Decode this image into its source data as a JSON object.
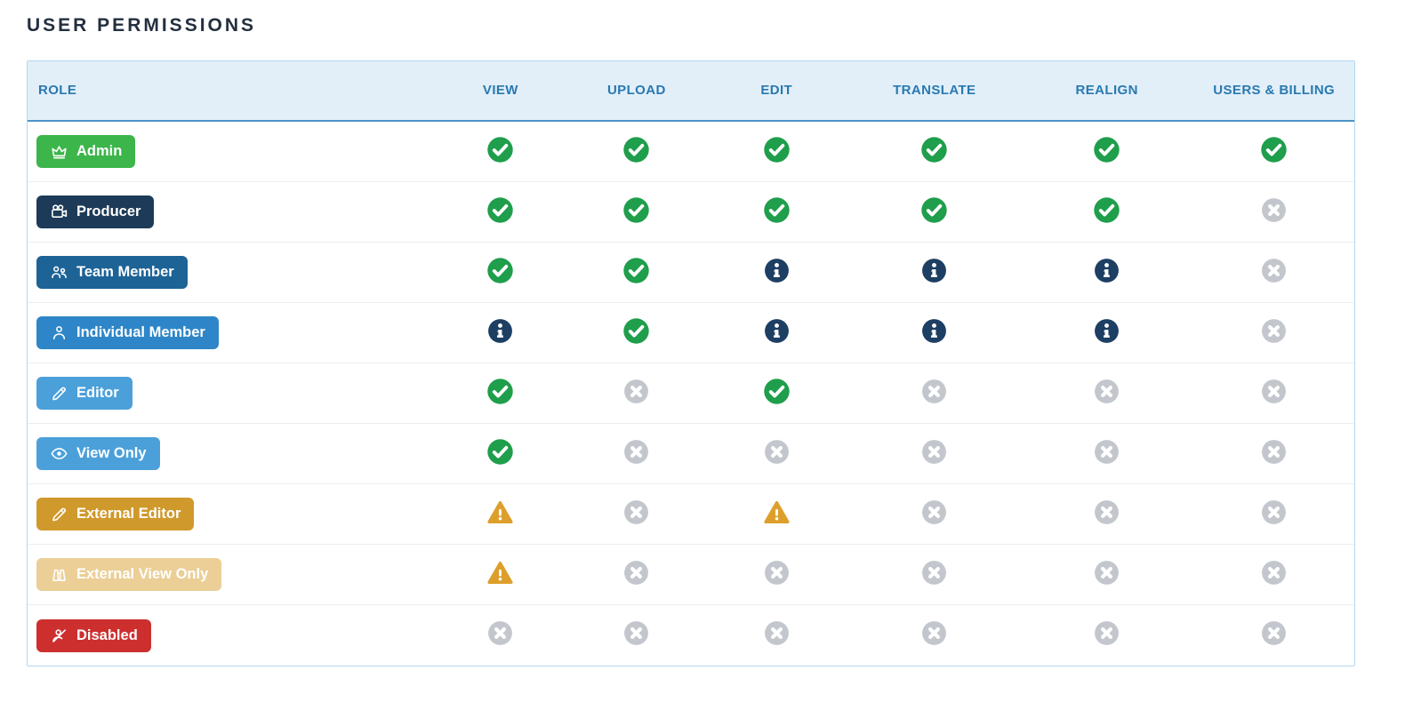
{
  "page": {
    "title": "USER PERMISSIONS"
  },
  "table": {
    "columns": [
      {
        "key": "role",
        "label": "ROLE"
      },
      {
        "key": "view",
        "label": "VIEW"
      },
      {
        "key": "upload",
        "label": "UPLOAD"
      },
      {
        "key": "edit",
        "label": "EDIT"
      },
      {
        "key": "translate",
        "label": "TRANSLATE"
      },
      {
        "key": "realign",
        "label": "REALIGN"
      },
      {
        "key": "users_billing",
        "label": "USERS & BILLING"
      }
    ],
    "status_colors": {
      "allowed": "#1f9e4b",
      "info": "#1d3f63",
      "warning": "#dd9f2b",
      "none": "#c3c7cd"
    },
    "status_icons": {
      "allowed": "check-circle-icon",
      "info": "info-circle-icon",
      "warning": "warning-triangle-icon",
      "none": "x-circle-icon"
    },
    "rows": [
      {
        "role": "Admin",
        "icon": "crown-icon",
        "badge_color": "#3cb54a",
        "permissions": {
          "view": "allowed",
          "upload": "allowed",
          "edit": "allowed",
          "translate": "allowed",
          "realign": "allowed",
          "users_billing": "allowed"
        }
      },
      {
        "role": "Producer",
        "icon": "movie-camera-icon",
        "badge_color": "#1d3b58",
        "permissions": {
          "view": "allowed",
          "upload": "allowed",
          "edit": "allowed",
          "translate": "allowed",
          "realign": "allowed",
          "users_billing": "none"
        }
      },
      {
        "role": "Team Member",
        "icon": "team-icon",
        "badge_color": "#1d6396",
        "permissions": {
          "view": "allowed",
          "upload": "allowed",
          "edit": "info",
          "translate": "info",
          "realign": "info",
          "users_billing": "none"
        }
      },
      {
        "role": "Individual Member",
        "icon": "person-icon",
        "badge_color": "#2e86c8",
        "permissions": {
          "view": "info",
          "upload": "allowed",
          "edit": "info",
          "translate": "info",
          "realign": "info",
          "users_billing": "none"
        }
      },
      {
        "role": "Editor",
        "icon": "pencil-icon",
        "badge_color": "#4ba0da",
        "permissions": {
          "view": "allowed",
          "upload": "none",
          "edit": "allowed",
          "translate": "none",
          "realign": "none",
          "users_billing": "none"
        }
      },
      {
        "role": "View Only",
        "icon": "eye-icon",
        "badge_color": "#4ba0da",
        "permissions": {
          "view": "allowed",
          "upload": "none",
          "edit": "none",
          "translate": "none",
          "realign": "none",
          "users_billing": "none"
        }
      },
      {
        "role": "External Editor",
        "icon": "pencil-icon",
        "badge_color": "#d0992c",
        "permissions": {
          "view": "warning",
          "upload": "none",
          "edit": "warning",
          "translate": "none",
          "realign": "none",
          "users_billing": "none"
        }
      },
      {
        "role": "External View Only",
        "icon": "binoculars-icon",
        "badge_color": "#ebcf97",
        "permissions": {
          "view": "warning",
          "upload": "none",
          "edit": "none",
          "translate": "none",
          "realign": "none",
          "users_billing": "none"
        }
      },
      {
        "role": "Disabled",
        "icon": "person-slash-icon",
        "badge_color": "#cd2f2f",
        "permissions": {
          "view": "none",
          "upload": "none",
          "edit": "none",
          "translate": "none",
          "realign": "none",
          "users_billing": "none"
        }
      }
    ]
  }
}
